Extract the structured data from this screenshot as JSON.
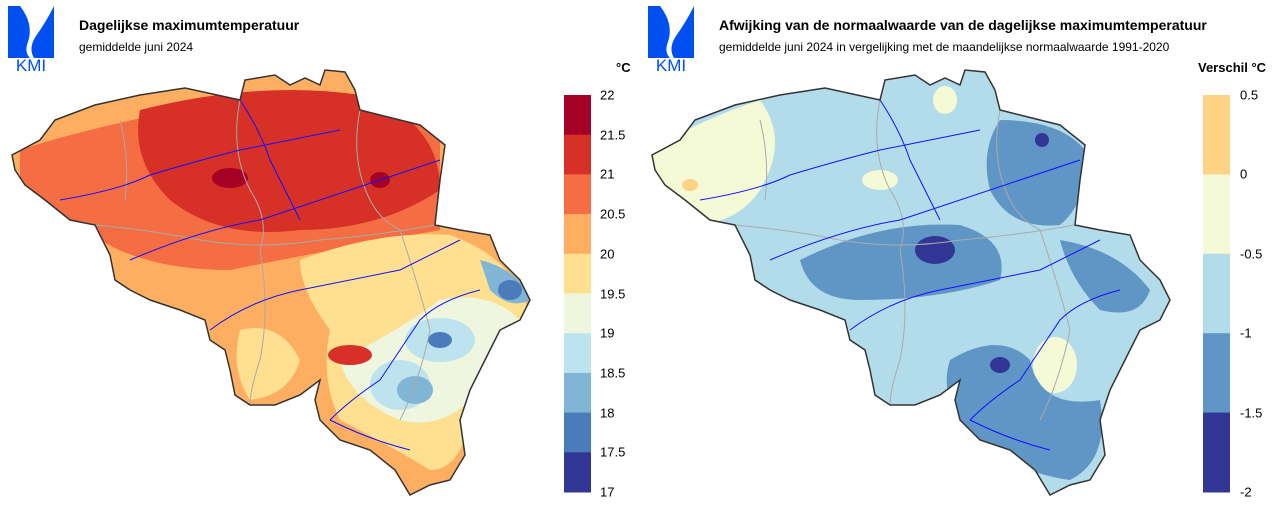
{
  "logo_text": "KMI",
  "left": {
    "title": "Dagelijkse maximumtemperatuur",
    "subtitle": "gemiddelde juni 2024",
    "legend": {
      "unit": "°C",
      "labels": [
        "22",
        "21.5",
        "21",
        "20.5",
        "20",
        "19.5",
        "19",
        "18.5",
        "18",
        "17.5",
        "17"
      ],
      "colors": [
        "#a50026",
        "#d73027",
        "#f46d43",
        "#fdae61",
        "#fee090",
        "#eef6df",
        "#bde3ee",
        "#80b5d6",
        "#4a7bba",
        "#313695"
      ]
    }
  },
  "right": {
    "title": "Afwijking van de normaalwaarde van de dagelijkse maximumtemperatuur",
    "subtitle": "gemiddelde juni 2024 in vergelijking met de maandelijkse normaalwaarde 1991-2020",
    "legend": {
      "unit": "Verschil °C",
      "labels": [
        "0.5",
        "0",
        "-0.5",
        "-1",
        "-1.5",
        "-2"
      ],
      "colors": [
        "#fdd384",
        "#f5fad6",
        "#b3dceb",
        "#6096c6",
        "#313695"
      ]
    }
  },
  "colors": {
    "logo": "#0050f0",
    "river": "#1010ff",
    "border": "#aaaaaa",
    "outline": "#333333"
  }
}
